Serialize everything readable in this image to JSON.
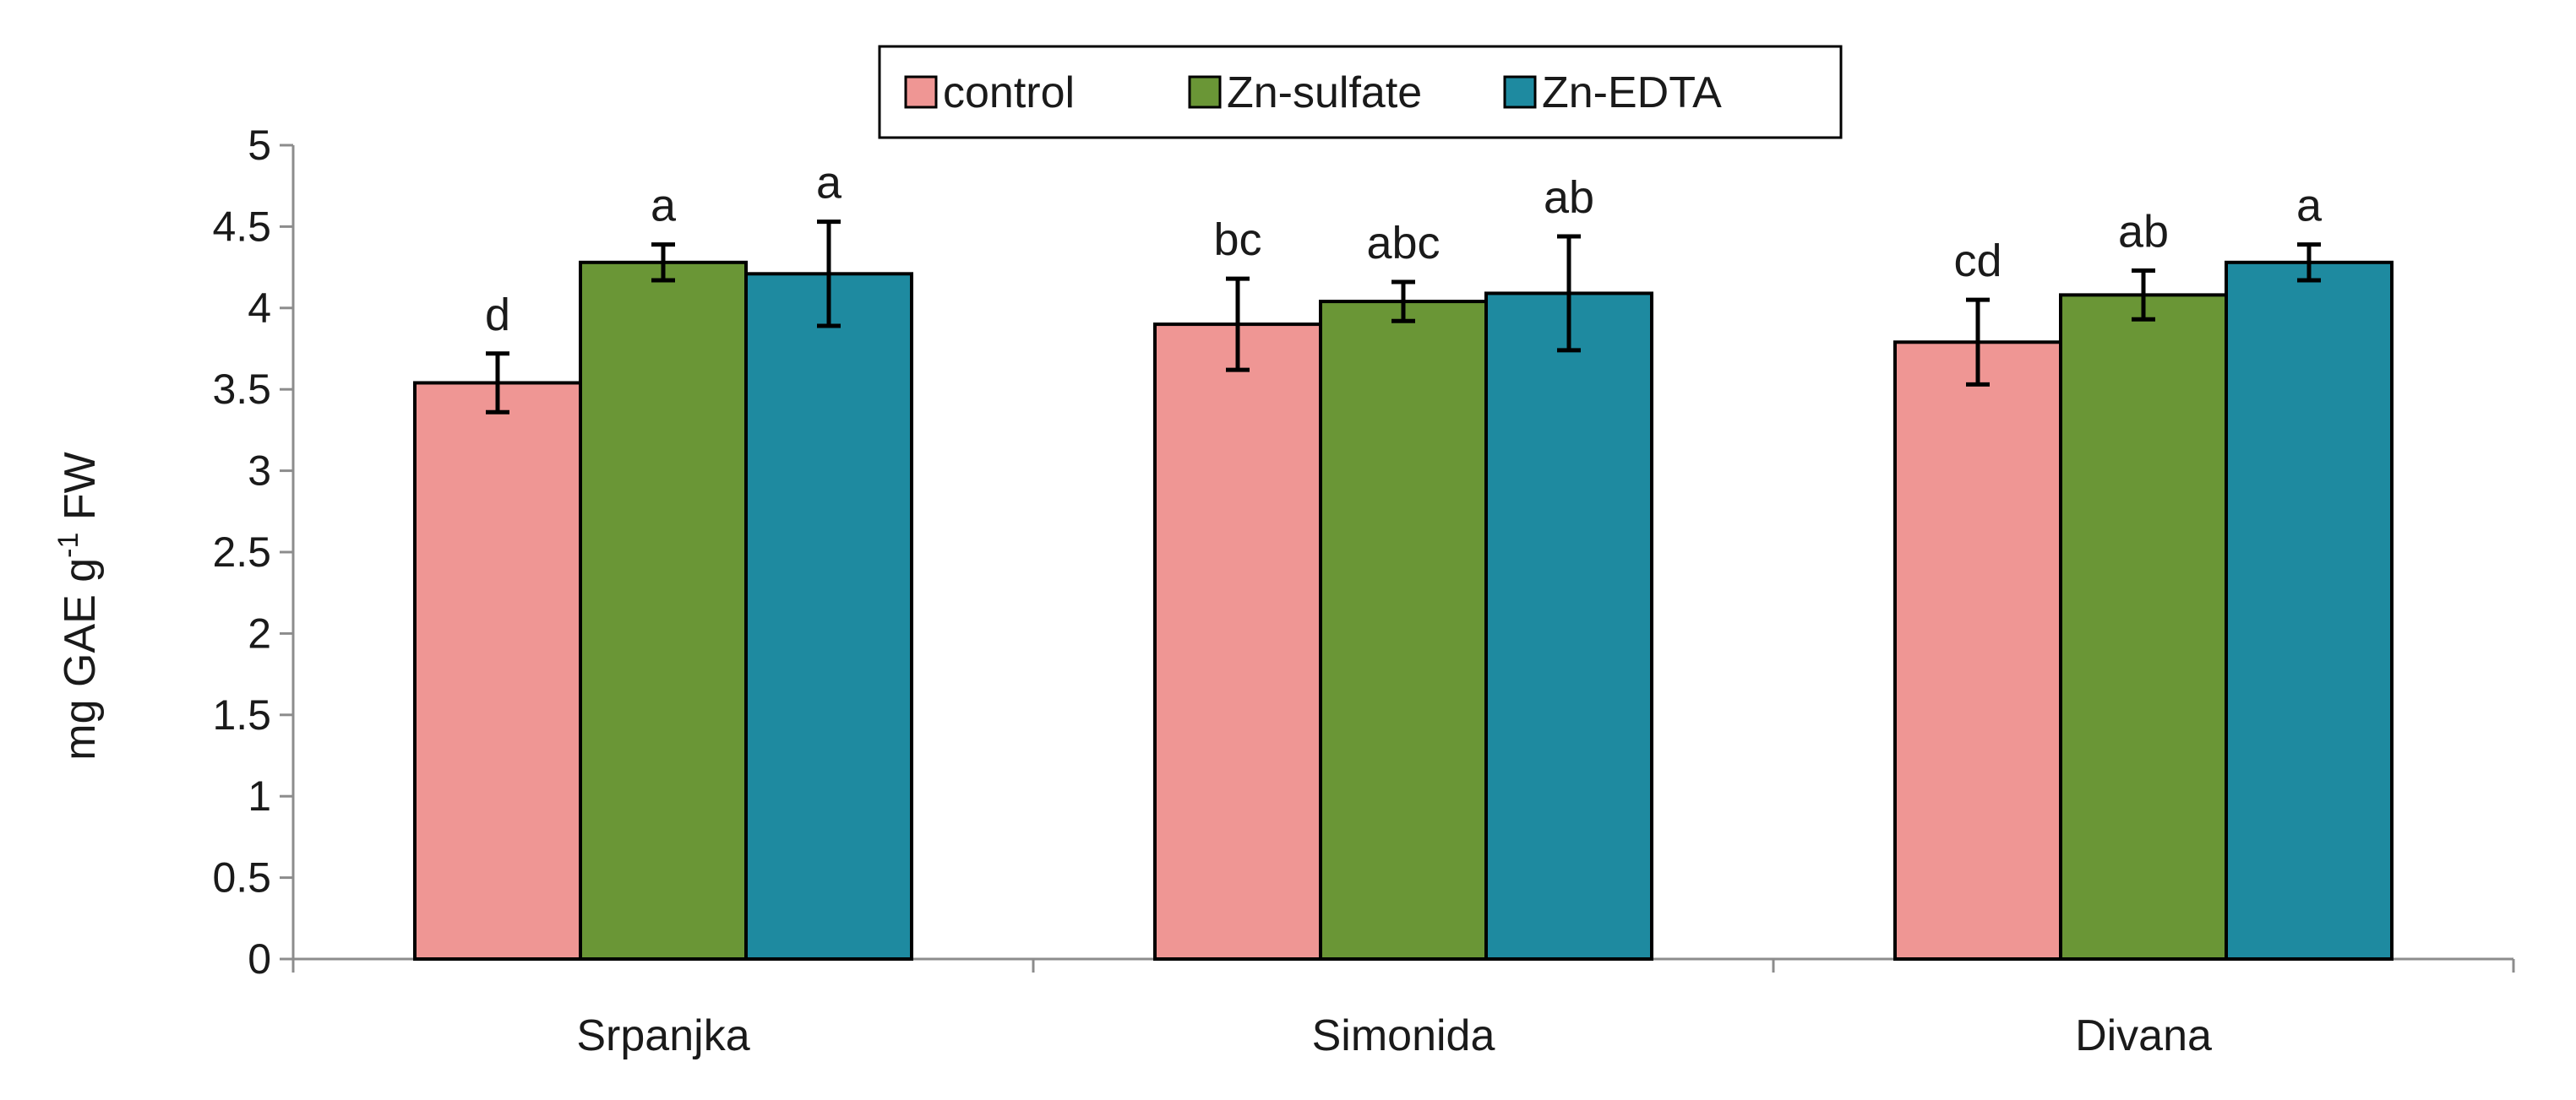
{
  "chart_data": {
    "type": "bar",
    "title": "",
    "xlabel": "",
    "ylabel": "mg GAE g",
    "ylabel_sup": "-1",
    "ylabel_suffix": " FW",
    "ylim": [
      0,
      5
    ],
    "yticks": [
      "0",
      "0.5",
      "1",
      "1.5",
      "2",
      "2.5",
      "3",
      "3.5",
      "4",
      "4.5",
      "5"
    ],
    "categories": [
      "Srpanjka",
      "Simonida",
      "Divana"
    ],
    "legend_position": "top-center",
    "series": [
      {
        "name": "control",
        "color": "#ef9694",
        "values": [
          3.54,
          3.9,
          3.79
        ],
        "errors": [
          0.18,
          0.28,
          0.26
        ],
        "labels": [
          "d",
          "bc",
          "cd"
        ]
      },
      {
        "name": "Zn-sulfate",
        "color": "#6a9636",
        "values": [
          4.28,
          4.04,
          4.08
        ],
        "errors": [
          0.11,
          0.12,
          0.15
        ],
        "labels": [
          "a",
          "abc",
          "ab"
        ]
      },
      {
        "name": "Zn-EDTA",
        "color": "#1e8aa0",
        "values": [
          4.21,
          4.09,
          4.28
        ],
        "errors": [
          0.32,
          0.35,
          0.11
        ],
        "labels": [
          "a",
          "ab",
          "a"
        ]
      }
    ]
  }
}
